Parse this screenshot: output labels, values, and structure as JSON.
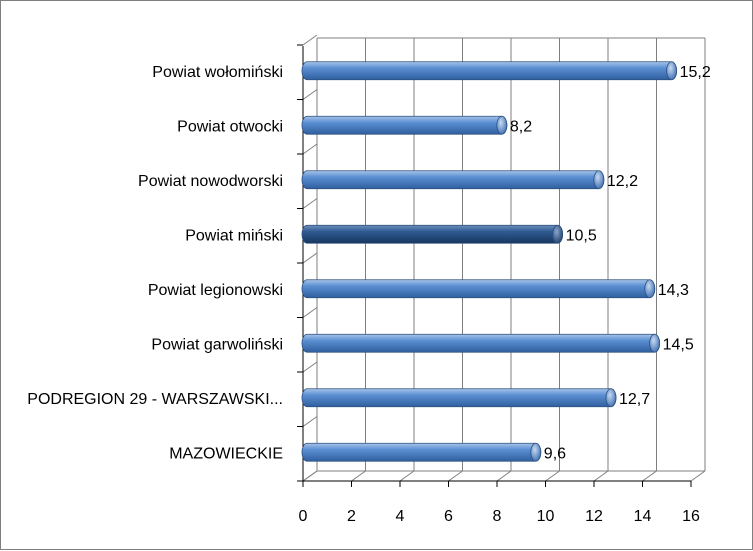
{
  "chart_data": {
    "type": "bar",
    "orientation": "horizontal",
    "title": "",
    "xlabel": "",
    "ylabel": "",
    "categories": [
      "MAZOWIECKIE",
      "PODREGION 29 - WARSZAWSKI...",
      "Powiat garwoliński",
      "Powiat legionowski",
      "Powiat miński",
      "Powiat nowodworski",
      "Powiat otwocki",
      "Powiat wołomiński"
    ],
    "values": [
      9.6,
      12.7,
      14.5,
      14.3,
      10.5,
      12.2,
      8.2,
      15.2
    ],
    "value_labels": [
      "9,6",
      "12,7",
      "14,5",
      "14,3",
      "10,5",
      "12,2",
      "8,2",
      "15,2"
    ],
    "highlighted_category": "Powiat miński",
    "xlim": [
      0,
      16
    ],
    "ticks": [
      0,
      2,
      4,
      6,
      8,
      10,
      12,
      14,
      16
    ],
    "tick_labels": [
      "0",
      "2",
      "4",
      "6",
      "8",
      "10",
      "12",
      "14",
      "16"
    ],
    "grid": true,
    "legend": "none",
    "colors": {
      "bar": "#4f81bd",
      "bar_highlight": "#2c5a8f",
      "grid": "#7f7f7f"
    }
  }
}
